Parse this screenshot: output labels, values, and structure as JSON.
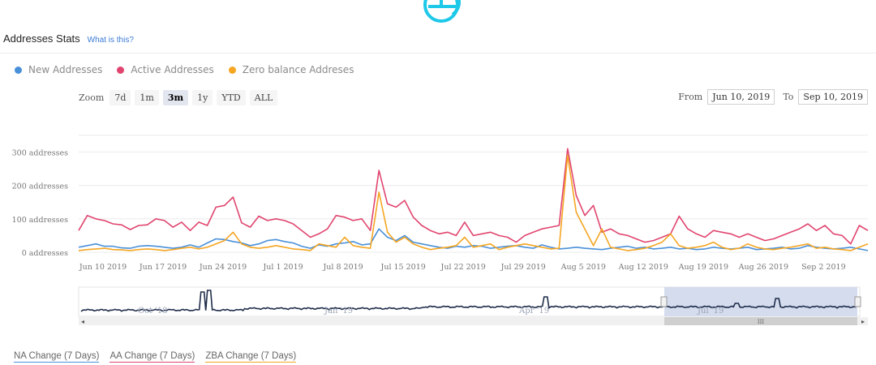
{
  "header": {
    "title": "Addresses Stats",
    "help_link": "What is this?"
  },
  "legend": [
    {
      "label": "New Addresses",
      "color": "#4a90d9"
    },
    {
      "label": "Active Addresses",
      "color": "#e0456f"
    },
    {
      "label": "Zero balance Addreses",
      "color": "#f5a623"
    }
  ],
  "zoom": {
    "label": "Zoom",
    "options": [
      "7d",
      "1m",
      "3m",
      "1y",
      "YTD",
      "ALL"
    ],
    "selected": "3m"
  },
  "range": {
    "from_label": "From",
    "from_value": "Jun 10, 2019",
    "to_label": "To",
    "to_value": "Sep 10, 2019"
  },
  "navigator": {
    "labels": [
      "Oct '18",
      "Jan '19",
      "Apr '19",
      "Jul '19"
    ],
    "scrollbar_grip": "III"
  },
  "changes": [
    {
      "label": "NA Change (7 Days)",
      "color": "#4a90d9"
    },
    {
      "label": "AA Change (7 Days)",
      "color": "#e0456f"
    },
    {
      "label": "ZBA Change (7 Days)",
      "color": "#f5a623"
    }
  ],
  "chart_data": {
    "type": "line",
    "title": "",
    "xlabel": "",
    "ylabel": "",
    "y_tick_labels": [
      "0 addresses",
      "100 addresses",
      "200 addresses",
      "300 addresses"
    ],
    "y_tick_values": [
      0,
      100,
      200,
      300
    ],
    "ylim": [
      0,
      350
    ],
    "x_range": [
      "2019-06-10",
      "2019-09-10"
    ],
    "x_tick_labels": [
      "Jun 10 2019",
      "Jun 17 2019",
      "Jun 24 2019",
      "Jul 1 2019",
      "Jul 8 2019",
      "Jul 15 2019",
      "Jul 22 2019",
      "Jul 29 2019",
      "Aug 5 2019",
      "Aug 12 2019",
      "Aug 19 2019",
      "Aug 26 2019",
      "Sep 2 2019"
    ],
    "x": [
      "2019-06-10",
      "2019-06-11",
      "2019-06-12",
      "2019-06-13",
      "2019-06-14",
      "2019-06-15",
      "2019-06-16",
      "2019-06-17",
      "2019-06-18",
      "2019-06-19",
      "2019-06-20",
      "2019-06-21",
      "2019-06-22",
      "2019-06-23",
      "2019-06-24",
      "2019-06-25",
      "2019-06-26",
      "2019-06-27",
      "2019-06-28",
      "2019-06-29",
      "2019-06-30",
      "2019-07-01",
      "2019-07-02",
      "2019-07-03",
      "2019-07-04",
      "2019-07-05",
      "2019-07-06",
      "2019-07-07",
      "2019-07-08",
      "2019-07-09",
      "2019-07-10",
      "2019-07-11",
      "2019-07-12",
      "2019-07-13",
      "2019-07-14",
      "2019-07-15",
      "2019-07-16",
      "2019-07-17",
      "2019-07-18",
      "2019-07-19",
      "2019-07-20",
      "2019-07-21",
      "2019-07-22",
      "2019-07-23",
      "2019-07-24",
      "2019-07-25",
      "2019-07-26",
      "2019-07-27",
      "2019-07-28",
      "2019-07-29",
      "2019-07-30",
      "2019-07-31",
      "2019-08-01",
      "2019-08-02",
      "2019-08-03",
      "2019-08-04",
      "2019-08-05",
      "2019-08-06",
      "2019-08-07",
      "2019-08-08",
      "2019-08-09",
      "2019-08-10",
      "2019-08-11",
      "2019-08-12",
      "2019-08-13",
      "2019-08-14",
      "2019-08-15",
      "2019-08-16",
      "2019-08-17",
      "2019-08-18",
      "2019-08-19",
      "2019-08-20",
      "2019-08-21",
      "2019-08-22",
      "2019-08-23",
      "2019-08-24",
      "2019-08-25",
      "2019-08-26",
      "2019-08-27",
      "2019-08-28",
      "2019-08-29",
      "2019-08-30",
      "2019-08-31",
      "2019-09-01",
      "2019-09-02",
      "2019-09-03",
      "2019-09-04",
      "2019-09-05",
      "2019-09-06",
      "2019-09-07",
      "2019-09-08",
      "2019-09-09",
      "2019-09-10"
    ],
    "series": [
      {
        "name": "New Addresses",
        "color": "#4a90d9",
        "values": [
          15,
          20,
          25,
          18,
          18,
          13,
          12,
          18,
          20,
          18,
          15,
          12,
          15,
          22,
          15,
          28,
          40,
          38,
          32,
          28,
          20,
          25,
          35,
          38,
          32,
          28,
          18,
          12,
          22,
          18,
          25,
          28,
          32,
          22,
          25,
          70,
          45,
          35,
          50,
          30,
          25,
          20,
          15,
          12,
          18,
          15,
          20,
          18,
          12,
          15,
          18,
          20,
          15,
          12,
          22,
          15,
          10,
          12,
          15,
          12,
          10,
          8,
          12,
          15,
          18,
          12,
          15,
          10,
          12,
          15,
          10,
          12,
          8,
          10,
          15,
          12,
          10,
          12,
          15,
          8,
          10,
          12,
          15,
          10,
          12,
          20,
          15,
          12,
          10,
          12,
          15,
          10,
          5
        ]
      },
      {
        "name": "Active Addresses",
        "color": "#e0456f",
        "values": [
          65,
          110,
          100,
          95,
          85,
          82,
          68,
          80,
          82,
          100,
          95,
          75,
          90,
          65,
          90,
          80,
          135,
          140,
          165,
          88,
          75,
          108,
          95,
          100,
          95,
          85,
          65,
          45,
          55,
          70,
          110,
          105,
          95,
          100,
          65,
          245,
          145,
          135,
          155,
          105,
          80,
          65,
          55,
          60,
          50,
          90,
          50,
          55,
          60,
          50,
          45,
          30,
          50,
          60,
          70,
          75,
          80,
          310,
          170,
          110,
          140,
          60,
          70,
          55,
          50,
          40,
          30,
          35,
          45,
          55,
          108,
          70,
          55,
          45,
          65,
          60,
          55,
          45,
          55,
          45,
          35,
          40,
          50,
          60,
          70,
          85,
          65,
          80,
          55,
          50,
          25,
          80,
          65
        ]
      },
      {
        "name": "Zero balance Addreses",
        "color": "#f5a623",
        "values": [
          5,
          8,
          10,
          12,
          8,
          7,
          5,
          8,
          10,
          8,
          5,
          8,
          12,
          15,
          10,
          15,
          25,
          35,
          60,
          25,
          15,
          12,
          15,
          20,
          15,
          10,
          8,
          5,
          25,
          20,
          15,
          45,
          20,
          15,
          12,
          180,
          60,
          30,
          45,
          25,
          15,
          8,
          12,
          15,
          20,
          45,
          15,
          20,
          25,
          8,
          15,
          20,
          25,
          20,
          15,
          10,
          12,
          290,
          120,
          70,
          20,
          70,
          15,
          10,
          5,
          8,
          12,
          20,
          30,
          55,
          20,
          12,
          15,
          20,
          30,
          15,
          8,
          12,
          25,
          15,
          10,
          8,
          12,
          15,
          20,
          25,
          12,
          15,
          10,
          8,
          5,
          15,
          25
        ]
      }
    ]
  }
}
